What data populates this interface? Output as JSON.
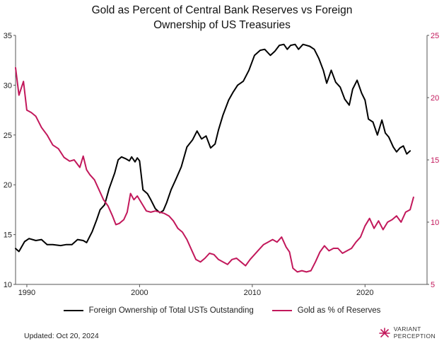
{
  "chart_data": {
    "type": "line",
    "title_line1": "Gold as Percent of Central Bank Reserves vs Foreign",
    "title_line2": "Ownership of US Treasuries",
    "x_ticks": [
      1990,
      2000,
      2010,
      2020
    ],
    "xlim": [
      1989,
      2025.5
    ],
    "left_axis": {
      "ticks": [
        10,
        15,
        20,
        25,
        30,
        35
      ],
      "ylim": [
        10,
        35
      ]
    },
    "right_axis": {
      "ticks": [
        5,
        10,
        15,
        20,
        25
      ],
      "ylim": [
        5,
        25
      ]
    },
    "series": [
      {
        "name": "Foreign Ownership of Total USTs Outstanding",
        "axis": "left",
        "color": "#000000",
        "x": [
          1989.0,
          1989.3,
          1989.8,
          1990.2,
          1990.8,
          1991.3,
          1991.8,
          1992.3,
          1993.0,
          1993.5,
          1994.0,
          1994.5,
          1995.0,
          1995.3,
          1995.8,
          1996.2,
          1996.5,
          1996.9,
          1997.3,
          1997.8,
          1998.1,
          1998.4,
          1998.8,
          1999.1,
          1999.3,
          1999.6,
          1999.8,
          2000.0,
          2000.3,
          2000.7,
          2001.0,
          2001.4,
          2001.8,
          2002.1,
          2002.4,
          2002.8,
          2003.2,
          2003.7,
          2004.2,
          2004.7,
          2005.1,
          2005.5,
          2005.9,
          2006.3,
          2006.7,
          2007.0,
          2007.4,
          2007.9,
          2008.3,
          2008.7,
          2009.2,
          2009.7,
          2010.2,
          2010.7,
          2011.1,
          2011.6,
          2012.0,
          2012.4,
          2012.8,
          2013.1,
          2013.4,
          2013.8,
          2014.1,
          2014.5,
          2014.8,
          2015.1,
          2015.5,
          2015.9,
          2016.3,
          2016.6,
          2017.0,
          2017.4,
          2017.8,
          2018.2,
          2018.6,
          2018.9,
          2019.3,
          2019.7,
          2020.0,
          2020.3,
          2020.7,
          2021.1,
          2021.5,
          2021.8,
          2022.1,
          2022.5,
          2022.8,
          2023.1,
          2023.4,
          2023.7,
          2024.0
        ],
        "y": [
          13.6,
          13.3,
          14.3,
          14.6,
          14.4,
          14.5,
          14.0,
          14.0,
          13.9,
          14.0,
          14.0,
          14.5,
          14.4,
          14.2,
          15.3,
          16.5,
          17.5,
          18.0,
          19.6,
          21.2,
          22.5,
          22.8,
          22.6,
          22.4,
          22.8,
          22.3,
          22.7,
          22.4,
          19.5,
          19.1,
          18.5,
          17.6,
          17.2,
          17.4,
          18.2,
          19.5,
          20.5,
          21.8,
          23.8,
          24.5,
          25.4,
          24.6,
          24.9,
          23.7,
          24.1,
          25.5,
          27.0,
          28.5,
          29.3,
          30.0,
          30.4,
          31.5,
          33.0,
          33.5,
          33.6,
          33.0,
          33.4,
          34.0,
          34.1,
          33.6,
          34.0,
          34.1,
          33.6,
          34.1,
          34.0,
          33.9,
          33.6,
          32.7,
          31.5,
          30.2,
          31.5,
          30.3,
          29.8,
          28.6,
          28.0,
          29.6,
          30.5,
          29.2,
          28.5,
          26.6,
          26.3,
          25.0,
          26.5,
          25.2,
          24.8,
          23.8,
          23.3,
          23.7,
          23.9,
          23.1,
          23.4
        ]
      },
      {
        "name": "Gold as % of Reserves",
        "axis": "right",
        "color": "#c2185b",
        "x": [
          1989.0,
          1989.3,
          1989.7,
          1990.0,
          1990.4,
          1990.8,
          1991.3,
          1991.8,
          1992.3,
          1992.8,
          1993.3,
          1993.8,
          1994.2,
          1994.7,
          1995.0,
          1995.3,
          1995.6,
          1996.0,
          1996.4,
          1996.8,
          1997.2,
          1997.6,
          1997.9,
          1998.2,
          1998.6,
          1998.9,
          1999.2,
          1999.5,
          1999.8,
          2000.2,
          2000.6,
          2001.0,
          2001.4,
          2001.8,
          2002.2,
          2002.6,
          2003.0,
          2003.4,
          2003.8,
          2004.2,
          2004.6,
          2005.0,
          2005.4,
          2005.8,
          2006.2,
          2006.6,
          2007.0,
          2007.4,
          2007.8,
          2008.2,
          2008.6,
          2009.0,
          2009.4,
          2009.8,
          2010.2,
          2010.6,
          2011.0,
          2011.4,
          2011.8,
          2012.2,
          2012.6,
          2013.0,
          2013.3,
          2013.6,
          2014.0,
          2014.4,
          2014.8,
          2015.2,
          2015.6,
          2016.0,
          2016.4,
          2016.8,
          2017.2,
          2017.6,
          2018.0,
          2018.4,
          2018.8,
          2019.2,
          2019.6,
          2020.0,
          2020.4,
          2020.8,
          2021.2,
          2021.6,
          2022.0,
          2022.4,
          2022.8,
          2023.2,
          2023.6,
          2024.0,
          2024.3
        ],
        "y": [
          22.4,
          20.2,
          21.3,
          19.0,
          18.8,
          18.5,
          17.6,
          17.0,
          16.2,
          15.9,
          15.2,
          14.9,
          15.0,
          14.4,
          15.3,
          14.2,
          13.8,
          13.4,
          12.6,
          11.8,
          11.3,
          10.5,
          9.8,
          9.9,
          10.2,
          10.8,
          12.3,
          11.8,
          12.1,
          11.5,
          10.9,
          10.8,
          10.9,
          10.8,
          10.7,
          10.5,
          10.1,
          9.5,
          9.2,
          8.6,
          7.8,
          7.0,
          6.8,
          7.1,
          7.5,
          7.4,
          7.0,
          6.8,
          6.6,
          7.0,
          7.1,
          6.8,
          6.5,
          7.0,
          7.4,
          7.8,
          8.2,
          8.4,
          8.6,
          8.4,
          8.8,
          8.0,
          7.6,
          6.3,
          6.0,
          6.1,
          6.0,
          6.1,
          6.8,
          7.6,
          8.1,
          7.7,
          7.9,
          7.9,
          7.5,
          7.7,
          7.9,
          8.4,
          8.8,
          9.7,
          10.3,
          9.5,
          10.1,
          9.4,
          10.0,
          10.2,
          10.5,
          10.0,
          10.8,
          11.0,
          12.0
        ]
      }
    ]
  },
  "legend": {
    "ust_label": "Foreign Ownership of Total USTs Outstanding",
    "gold_label": "Gold as % of Reserves"
  },
  "footer": {
    "updated": "Updated: Oct 20, 2024",
    "logo_line1": "VARIANT",
    "logo_line2": "PERCEPTION"
  },
  "colors": {
    "ust": "#000000",
    "gold": "#c2185b",
    "axis": "#555555"
  },
  "logo_icon": "sunburst-icon"
}
